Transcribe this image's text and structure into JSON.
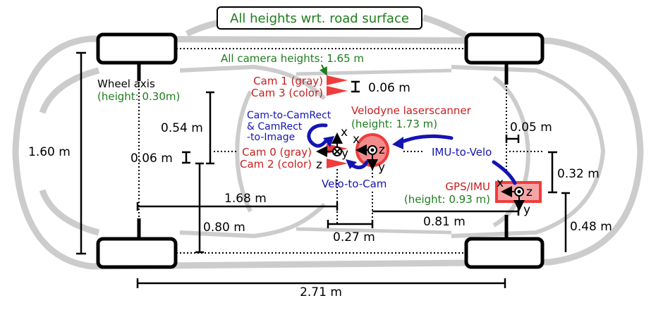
{
  "title": "All heights wrt. road surface",
  "colors": {
    "label_red": "#c81e1e",
    "label_green": "#1e7d1e",
    "label_blue": "#1414b4",
    "sensor_fill": "#f28c8c",
    "sensor_stroke": "#f03c3c",
    "car_outline": "#cccccc"
  },
  "wheel_axis": {
    "label": "Wheel axis",
    "height": "(height: 0.30m)"
  },
  "cameras": {
    "all_heights": "All camera heights: 1.65 m",
    "cam1": "Cam 1 (gray)",
    "cam3": "Cam 3 (color)",
    "cam0": "Cam 0 (gray)",
    "cam2": "Cam 2 (color)",
    "axes": {
      "x": "x",
      "y": "y",
      "z": "z"
    }
  },
  "velodyne": {
    "label": "Velodyne laserscanner",
    "height": "(height: 1.73 m)",
    "axes": {
      "x": "x",
      "y": "y",
      "z": "z"
    }
  },
  "gps_imu": {
    "label": "GPS/IMU",
    "height": "(height: 0.93 m)",
    "axes": {
      "x": "x",
      "y": "y",
      "z": "z"
    }
  },
  "transforms": {
    "cam_rect_1": "Cam-to-CamRect",
    "cam_rect_2": "& CamRect",
    "cam_rect_3": "-to-Image",
    "imu_to_velo": "IMU-to-Velo",
    "velo_to_cam": "Velo-to-Cam"
  },
  "dimensions": {
    "width_1_60": "1.60 m",
    "wheelbase_2_71": "2.71 m",
    "cam_spacing_0_06": "0.06 m",
    "cam_height_0_06": "0.06 m",
    "cam_offset_0_54": "0.54 m",
    "d_1_68": "1.68 m",
    "d_0_80": "0.80 m",
    "d_0_27": "0.27 m",
    "d_0_81": "0.81 m",
    "d_0_05": "0.05 m",
    "d_0_32": "0.32 m",
    "d_0_48": "0.48 m"
  }
}
